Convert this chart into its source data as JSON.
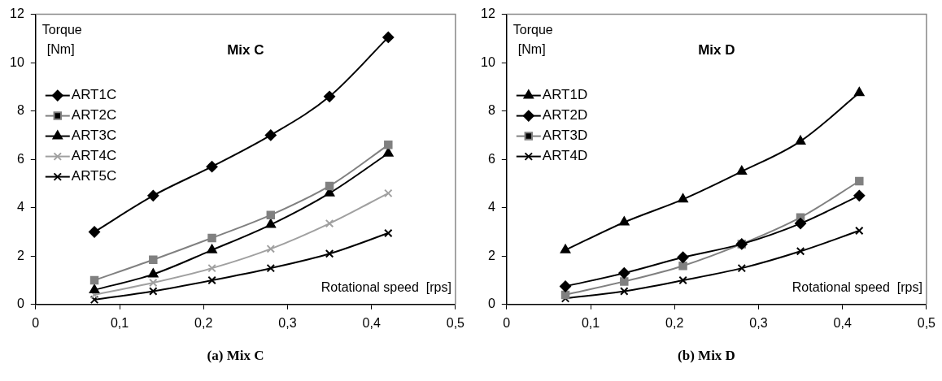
{
  "chart_data": [
    {
      "type": "line",
      "title": "Mix C",
      "xlabel": "Rotational speed  [rps]",
      "ylabel": "Torque [Nm]",
      "annotations": [
        "(a) Mix C"
      ],
      "x": [
        0.07,
        0.14,
        0.21,
        0.28,
        0.35,
        0.42
      ],
      "series": [
        {
          "name": "ART1C",
          "color": "#000000",
          "marker": "diamond",
          "values": [
            3.0,
            4.5,
            5.7,
            7.0,
            8.6,
            11.05
          ]
        },
        {
          "name": "ART2C",
          "color": "#808080",
          "marker": "square",
          "values": [
            1.0,
            1.85,
            2.75,
            3.7,
            4.9,
            6.6
          ]
        },
        {
          "name": "ART3C",
          "color": "#000000",
          "marker": "triangle",
          "values": [
            0.6,
            1.25,
            2.25,
            3.3,
            4.6,
            6.25
          ]
        },
        {
          "name": "ART4C",
          "color": "#a0a0a0",
          "marker": "cross",
          "values": [
            0.4,
            0.9,
            1.5,
            2.3,
            3.35,
            4.6
          ]
        },
        {
          "name": "ART5C",
          "color": "#000000",
          "marker": "cross",
          "values": [
            0.2,
            0.55,
            1.0,
            1.5,
            2.1,
            2.95
          ]
        }
      ],
      "xlim": [
        0,
        0.5
      ],
      "xticks": [
        0,
        {
          "value": 0.1,
          "label": "0,1"
        },
        {
          "value": 0.2,
          "label": "0,2"
        },
        {
          "value": 0.3,
          "label": "0,3"
        },
        {
          "value": 0.4,
          "label": "0,4"
        },
        {
          "value": 0.5,
          "label": "0,5"
        }
      ],
      "ylim": [
        0,
        12
      ],
      "yticks": [
        0,
        2,
        4,
        6,
        8,
        10,
        12
      ],
      "legend": "top left",
      "grid": false,
      "line_style": "solid"
    },
    {
      "type": "line",
      "title": "Mix D",
      "xlabel": "Rotational speed  [rps]",
      "ylabel": "Torque [Nm]",
      "annotations": [
        "(b) Mix D"
      ],
      "x": [
        0.07,
        0.14,
        0.21,
        0.28,
        0.35,
        0.42
      ],
      "series": [
        {
          "name": "ART1D",
          "color": "#000000",
          "marker": "triangle",
          "values": [
            2.25,
            3.4,
            4.35,
            5.5,
            6.75,
            8.75
          ]
        },
        {
          "name": "ART2D",
          "color": "#000000",
          "marker": "diamond",
          "values": [
            0.75,
            1.3,
            1.95,
            2.5,
            3.35,
            4.5
          ]
        },
        {
          "name": "ART3D",
          "color": "#808080",
          "marker": "square",
          "values": [
            0.4,
            0.95,
            1.6,
            2.5,
            3.6,
            5.1
          ]
        },
        {
          "name": "ART4D",
          "color": "#000000",
          "marker": "cross",
          "values": [
            0.25,
            0.55,
            1.0,
            1.5,
            2.2,
            3.05
          ]
        }
      ],
      "xlim": [
        0,
        0.5
      ],
      "xticks": [
        0,
        {
          "value": 0.1,
          "label": "0,1"
        },
        {
          "value": 0.2,
          "label": "0,2"
        },
        {
          "value": 0.3,
          "label": "0,3"
        },
        {
          "value": 0.4,
          "label": "0,4"
        },
        {
          "value": 0.5,
          "label": "0,5"
        }
      ],
      "ylim": [
        0,
        12
      ],
      "yticks": [
        0,
        2,
        4,
        6,
        8,
        10,
        12
      ],
      "legend": "top left",
      "grid": false,
      "line_style": "solid"
    }
  ]
}
